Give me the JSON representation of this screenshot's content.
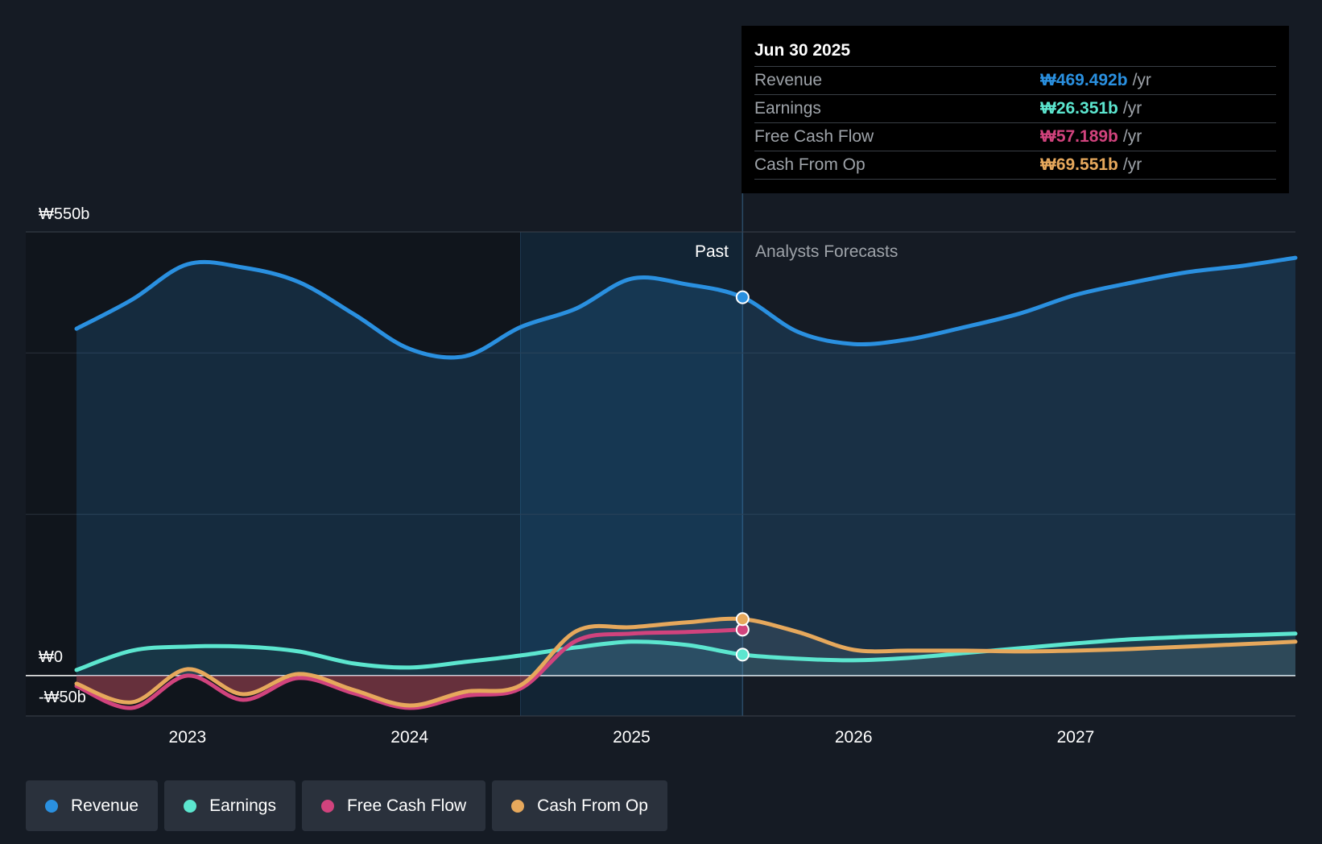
{
  "chart_data": {
    "type": "line",
    "title": "",
    "y_axis": {
      "top_label": "₩550b",
      "zero_label": "₩0",
      "bottom_label": "-₩50b",
      "ylim": [
        -50,
        550
      ]
    },
    "x_axis": {
      "ticks": [
        "2023",
        "2024",
        "2025",
        "2026",
        "2027"
      ],
      "range": [
        2022.5,
        2027.99
      ]
    },
    "sections": {
      "past_label": "Past",
      "forecast_label": "Analysts Forecasts",
      "divider_x": 2025.5
    },
    "series": [
      {
        "name": "Revenue",
        "color": "#2a90e0",
        "x": [
          2022.5,
          2022.75,
          2023.0,
          2023.25,
          2023.5,
          2023.75,
          2024.0,
          2024.25,
          2024.5,
          2024.75,
          2025.0,
          2025.25,
          2025.5,
          2025.75,
          2026.0,
          2026.25,
          2026.5,
          2026.75,
          2027.0,
          2027.25,
          2027.5,
          2027.75,
          2027.99
        ],
        "values": [
          430,
          466,
          510,
          506,
          488,
          448,
          405,
          396,
          432,
          455,
          492,
          485,
          469,
          426,
          411,
          417,
          432,
          449,
          472,
          487,
          500,
          508,
          518
        ]
      },
      {
        "name": "Earnings",
        "color": "#5ce6cf",
        "x": [
          2022.5,
          2022.75,
          2023.0,
          2023.25,
          2023.5,
          2023.75,
          2024.0,
          2024.25,
          2024.5,
          2024.75,
          2025.0,
          2025.25,
          2025.5,
          2025.75,
          2026.0,
          2026.25,
          2026.5,
          2026.75,
          2027.0,
          2027.25,
          2027.5,
          2027.75,
          2027.99
        ],
        "values": [
          7,
          31,
          36,
          36,
          30,
          15,
          10,
          17,
          25,
          35,
          42,
          38,
          26,
          21,
          19,
          22,
          28,
          34,
          40,
          45,
          48,
          50,
          52
        ]
      },
      {
        "name": "Free Cash Flow",
        "color": "#d1437d",
        "x": [
          2022.5,
          2022.75,
          2023.0,
          2023.25,
          2023.5,
          2023.75,
          2024.0,
          2024.25,
          2024.5,
          2024.75,
          2025.0,
          2025.25,
          2025.5
        ],
        "values": [
          -13,
          -40,
          0,
          -30,
          -3,
          -22,
          -40,
          -25,
          -16,
          43,
          52,
          54,
          57
        ]
      },
      {
        "name": "Cash From Op",
        "color": "#e6a85c",
        "x": [
          2022.5,
          2022.75,
          2023.0,
          2023.25,
          2023.5,
          2023.75,
          2024.0,
          2024.25,
          2024.5,
          2024.75,
          2025.0,
          2025.25,
          2025.5,
          2025.75,
          2026.0,
          2026.25,
          2026.5,
          2026.75,
          2027.0,
          2027.25,
          2027.5,
          2027.75,
          2027.99
        ],
        "values": [
          -10,
          -33,
          8,
          -23,
          2,
          -18,
          -37,
          -20,
          -12,
          55,
          60,
          66,
          70,
          54,
          32,
          31,
          31,
          30,
          31,
          33,
          36,
          39,
          42
        ]
      }
    ]
  },
  "tooltip": {
    "date": "Jun 30 2025",
    "rows": [
      {
        "label": "Revenue",
        "value": "₩469.492b",
        "unit": "/yr",
        "color": "#2a90e0"
      },
      {
        "label": "Earnings",
        "value": "₩26.351b",
        "unit": "/yr",
        "color": "#5ce6cf"
      },
      {
        "label": "Free Cash Flow",
        "value": "₩57.189b",
        "unit": "/yr",
        "color": "#d1437d"
      },
      {
        "label": "Cash From Op",
        "value": "₩69.551b",
        "unit": "/yr",
        "color": "#e6a85c"
      }
    ]
  },
  "legend": {
    "items": [
      {
        "label": "Revenue",
        "color": "#2a90e0"
      },
      {
        "label": "Earnings",
        "color": "#5ce6cf"
      },
      {
        "label": "Free Cash Flow",
        "color": "#d1437d"
      },
      {
        "label": "Cash From Op",
        "color": "#e6a85c"
      }
    ]
  }
}
